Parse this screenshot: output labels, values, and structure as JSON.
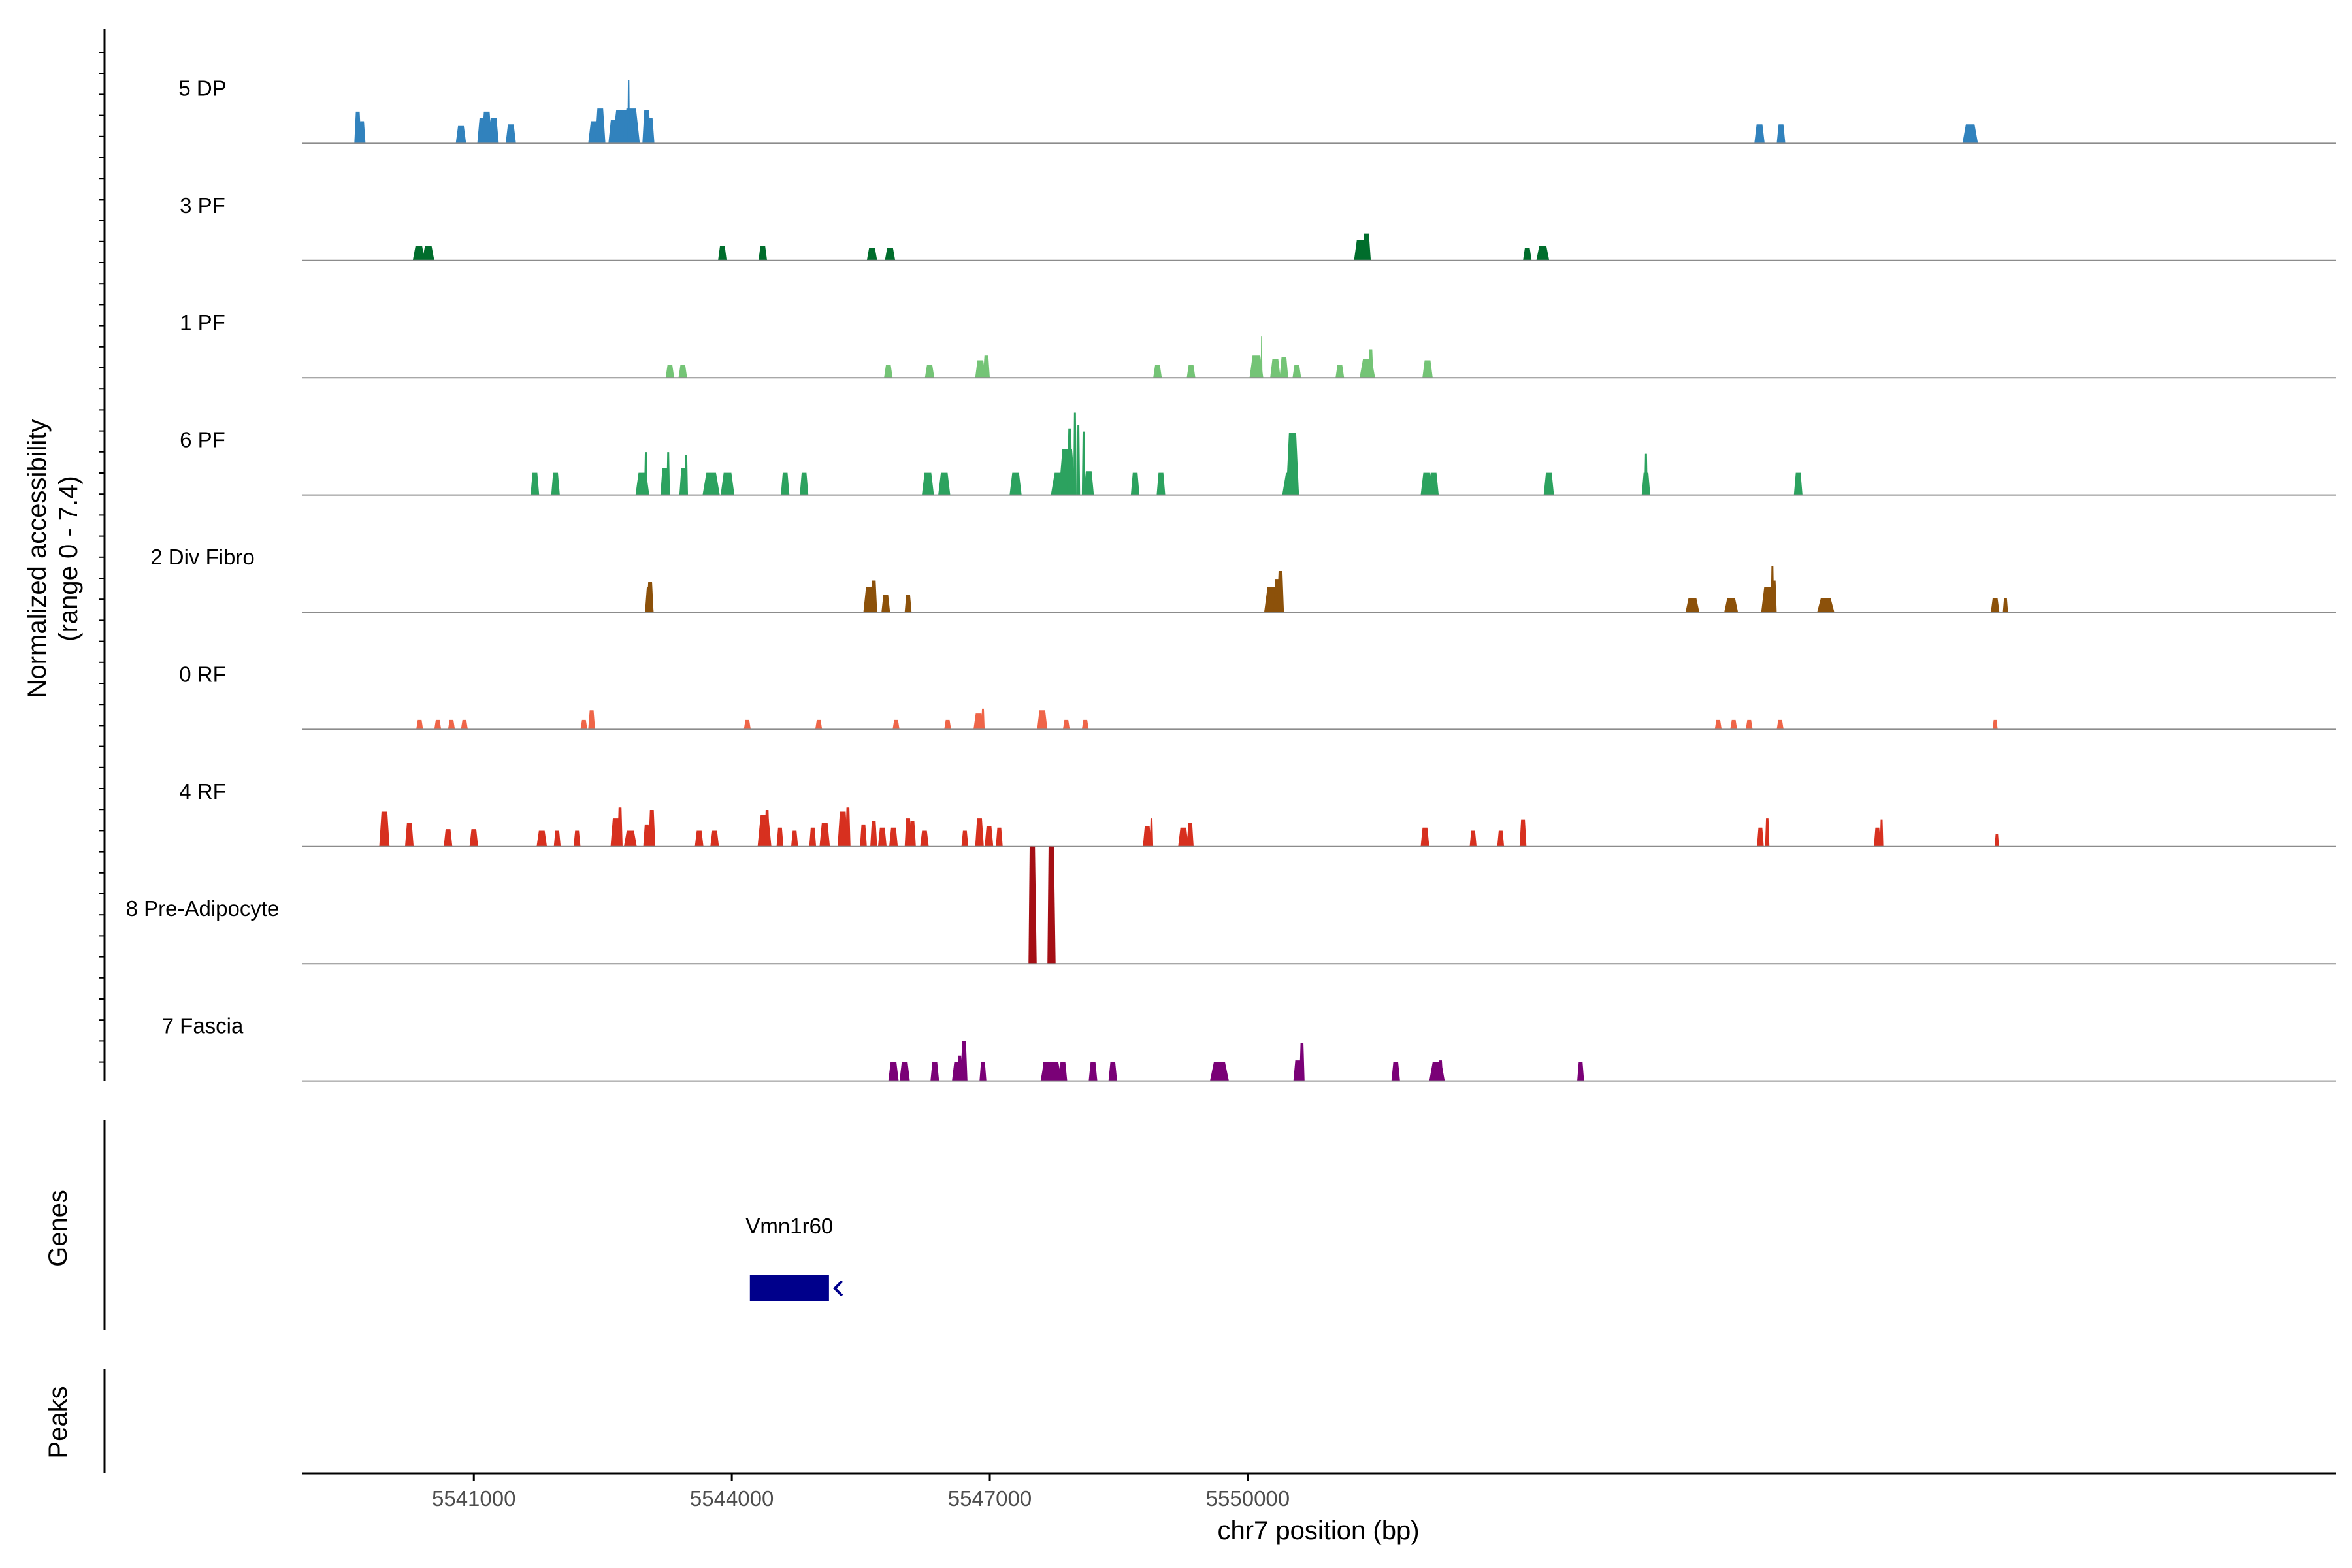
{
  "chart_data": {
    "type": "area",
    "title": "",
    "chromosome": "chr7",
    "xlabel": "chr7 position (bp)",
    "ylabel_line1": "Normalized accessibility",
    "ylabel_line2": "(range 0 - 7.4)",
    "xlim": [
      5539000,
      5562650
    ],
    "ylim": [
      0,
      7.4
    ],
    "xticks": [
      {
        "value": 5541000,
        "label": "5541000"
      },
      {
        "value": 5544000,
        "label": "5544000"
      },
      {
        "value": 5547000,
        "label": "5547000"
      },
      {
        "value": 5550000,
        "label": "5550000"
      }
    ],
    "tracks": [
      {
        "name": "5 DP",
        "color": "#3182bd",
        "peaks": [
          [
            5539650,
            80,
            2.0
          ],
          [
            5539700,
            80,
            1.4
          ],
          [
            5540850,
            120,
            1.1
          ],
          [
            5541100,
            120,
            1.6
          ],
          [
            5541150,
            120,
            2.0
          ],
          [
            5541230,
            120,
            1.6
          ],
          [
            5541430,
            120,
            1.2
          ],
          [
            5542400,
            140,
            1.4
          ],
          [
            5542470,
            120,
            2.2
          ],
          [
            5542630,
            130,
            1.5
          ],
          [
            5542720,
            220,
            2.1
          ],
          [
            5542830,
            200,
            2.2
          ],
          [
            5542800,
            30,
            4.0
          ],
          [
            5543010,
            100,
            2.1
          ],
          [
            5543050,
            100,
            1.6
          ],
          [
            5555950,
            120,
            1.2
          ],
          [
            5556200,
            100,
            1.2
          ],
          [
            5558400,
            180,
            1.2
          ]
        ]
      },
      {
        "name": "3 PF",
        "color": "#006d2c",
        "peaks": [
          [
            5540360,
            140,
            0.9
          ],
          [
            5540470,
            140,
            0.9
          ],
          [
            5543890,
            100,
            0.9
          ],
          [
            5544360,
            100,
            0.9
          ],
          [
            5545630,
            120,
            0.8
          ],
          [
            5545840,
            120,
            0.8
          ],
          [
            5551310,
            150,
            1.3
          ],
          [
            5551380,
            100,
            1.7
          ],
          [
            5553250,
            100,
            0.8
          ],
          [
            5553430,
            150,
            0.9
          ]
        ]
      },
      {
        "name": "1 PF",
        "color": "#74c476",
        "peaks": [
          [
            5543280,
            100,
            0.8
          ],
          [
            5543430,
            100,
            0.8
          ],
          [
            5545820,
            100,
            0.8
          ],
          [
            5546300,
            110,
            0.8
          ],
          [
            5546890,
            120,
            1.1
          ],
          [
            5546960,
            80,
            1.4
          ],
          [
            5548950,
            100,
            0.8
          ],
          [
            5549340,
            100,
            0.8
          ],
          [
            5550100,
            160,
            1.4
          ],
          [
            5550160,
            20,
            2.6
          ],
          [
            5550320,
            120,
            1.2
          ],
          [
            5550420,
            100,
            1.3
          ],
          [
            5550570,
            100,
            0.8
          ],
          [
            5551070,
            100,
            0.8
          ],
          [
            5551390,
            180,
            1.2
          ],
          [
            5551430,
            60,
            1.8
          ],
          [
            5552090,
            120,
            1.1
          ]
        ]
      },
      {
        "name": "6 PF",
        "color": "#2ca25f",
        "peaks": [
          [
            5541710,
            100,
            1.4
          ],
          [
            5541950,
            100,
            1.4
          ],
          [
            5542960,
            160,
            1.4
          ],
          [
            5543000,
            40,
            2.7
          ],
          [
            5543220,
            100,
            1.7
          ],
          [
            5543260,
            40,
            2.7
          ],
          [
            5543440,
            100,
            1.7
          ],
          [
            5543470,
            40,
            2.5
          ],
          [
            5543760,
            200,
            1.4
          ],
          [
            5543950,
            160,
            1.4
          ],
          [
            5544620,
            100,
            1.4
          ],
          [
            5544840,
            100,
            1.4
          ],
          [
            5546280,
            140,
            1.4
          ],
          [
            5546470,
            140,
            1.4
          ],
          [
            5547300,
            140,
            1.4
          ],
          [
            5547810,
            200,
            1.4
          ],
          [
            5547900,
            200,
            2.9
          ],
          [
            5547930,
            60,
            4.2
          ],
          [
            5547990,
            40,
            5.2
          ],
          [
            5548030,
            40,
            4.4
          ],
          [
            5548090,
            40,
            4.0
          ],
          [
            5548150,
            120,
            1.5
          ],
          [
            5548690,
            100,
            1.4
          ],
          [
            5548990,
            100,
            1.4
          ],
          [
            5550500,
            200,
            1.4
          ],
          [
            5550520,
            150,
            3.9
          ],
          [
            5552080,
            140,
            1.4
          ],
          [
            5552160,
            120,
            1.4
          ],
          [
            5553500,
            120,
            1.4
          ],
          [
            5554630,
            100,
            1.4
          ],
          [
            5554630,
            40,
            2.6
          ],
          [
            5556400,
            100,
            1.4
          ]
        ]
      },
      {
        "name": "2 Div Fibro",
        "color": "#8c510a",
        "peaks": [
          [
            5543040,
            100,
            1.6
          ],
          [
            5543050,
            80,
            1.9
          ],
          [
            5545600,
            140,
            1.6
          ],
          [
            5545650,
            80,
            2.0
          ],
          [
            5545790,
            100,
            1.1
          ],
          [
            5546050,
            80,
            1.1
          ],
          [
            5550280,
            180,
            1.6
          ],
          [
            5550340,
            80,
            2.1
          ],
          [
            5550380,
            80,
            2.6
          ],
          [
            5555170,
            160,
            0.9
          ],
          [
            5555620,
            160,
            0.9
          ],
          [
            5556050,
            160,
            1.6
          ],
          [
            5556100,
            40,
            2.9
          ],
          [
            5556120,
            60,
            2.0
          ],
          [
            5556720,
            200,
            0.9
          ],
          [
            5558690,
            100,
            0.9
          ],
          [
            5558810,
            60,
            0.9
          ]
        ]
      },
      {
        "name": "0 RF",
        "color": "#ef6548",
        "peaks": [
          [
            5540370,
            80,
            0.6
          ],
          [
            5540580,
            80,
            0.6
          ],
          [
            5540740,
            80,
            0.6
          ],
          [
            5540890,
            80,
            0.6
          ],
          [
            5542280,
            80,
            0.6
          ],
          [
            5542370,
            80,
            1.2
          ],
          [
            5544180,
            80,
            0.6
          ],
          [
            5545010,
            80,
            0.6
          ],
          [
            5545910,
            80,
            0.6
          ],
          [
            5546510,
            80,
            0.6
          ],
          [
            5546870,
            120,
            1.0
          ],
          [
            5546920,
            40,
            1.3
          ],
          [
            5547610,
            120,
            1.2
          ],
          [
            5547890,
            80,
            0.6
          ],
          [
            5548110,
            80,
            0.6
          ],
          [
            5555470,
            80,
            0.6
          ],
          [
            5555650,
            80,
            0.6
          ],
          [
            5555830,
            80,
            0.6
          ],
          [
            5556190,
            80,
            0.6
          ],
          [
            5558690,
            60,
            0.6
          ]
        ]
      },
      {
        "name": "4 RF",
        "color": "#d7301f",
        "peaks": [
          [
            5539960,
            120,
            2.2
          ],
          [
            5540250,
            100,
            1.5
          ],
          [
            5540700,
            100,
            1.1
          ],
          [
            5541000,
            100,
            1.1
          ],
          [
            5541790,
            120,
            1.0
          ],
          [
            5541970,
            80,
            1.0
          ],
          [
            5542200,
            80,
            1.0
          ],
          [
            5542650,
            120,
            1.8
          ],
          [
            5542700,
            60,
            2.5
          ],
          [
            5542820,
            150,
            1.0
          ],
          [
            5543010,
            80,
            1.4
          ],
          [
            5543070,
            80,
            2.3
          ],
          [
            5543620,
            100,
            1.0
          ],
          [
            5543800,
            100,
            1.0
          ],
          [
            5544380,
            160,
            2.0
          ],
          [
            5544410,
            60,
            2.3
          ],
          [
            5544560,
            80,
            1.2
          ],
          [
            5544730,
            80,
            1.0
          ],
          [
            5544940,
            80,
            1.2
          ],
          [
            5545080,
            120,
            1.5
          ],
          [
            5545290,
            120,
            2.2
          ],
          [
            5545350,
            60,
            2.5
          ],
          [
            5545530,
            80,
            1.4
          ],
          [
            5545650,
            80,
            1.6
          ],
          [
            5545750,
            100,
            1.2
          ],
          [
            5545880,
            100,
            1.2
          ],
          [
            5546050,
            80,
            1.8
          ],
          [
            5546100,
            80,
            1.6
          ],
          [
            5546240,
            100,
            1.0
          ],
          [
            5546710,
            80,
            1.0
          ],
          [
            5546880,
            100,
            1.8
          ],
          [
            5546990,
            100,
            1.3
          ],
          [
            5547110,
            80,
            1.2
          ],
          [
            5548830,
            100,
            1.3
          ],
          [
            5548880,
            40,
            1.8
          ],
          [
            5549250,
            120,
            1.2
          ],
          [
            5549330,
            80,
            1.5
          ],
          [
            5552060,
            100,
            1.2
          ],
          [
            5552620,
            80,
            1.0
          ],
          [
            5552940,
            80,
            1.0
          ],
          [
            5553200,
            80,
            1.7
          ],
          [
            5555960,
            80,
            1.2
          ],
          [
            5556040,
            50,
            1.8
          ],
          [
            5557320,
            80,
            1.2
          ],
          [
            5557370,
            40,
            1.7
          ],
          [
            5558710,
            50,
            0.8
          ]
        ]
      },
      {
        "name": "8 Pre-Adipocyte",
        "color": "#a50f15",
        "peaks": [
          [
            5547480,
            60,
            7.4
          ],
          [
            5547500,
            90,
            7.4
          ],
          [
            5547700,
            60,
            7.4
          ],
          [
            5547720,
            90,
            7.4
          ]
        ]
      },
      {
        "name": "7 Fascia",
        "color": "#7a0177",
        "peaks": [
          [
            5545880,
            120,
            1.2
          ],
          [
            5546010,
            120,
            1.2
          ],
          [
            5546360,
            100,
            1.2
          ],
          [
            5546620,
            120,
            1.2
          ],
          [
            5546650,
            60,
            1.6
          ],
          [
            5546700,
            80,
            2.5
          ],
          [
            5546920,
            80,
            1.2
          ],
          [
            5547650,
            100,
            1.2
          ],
          [
            5547850,
            100,
            1.2
          ],
          [
            5547680,
            180,
            1.2
          ],
          [
            5547740,
            200,
            1.2
          ],
          [
            5548200,
            100,
            1.2
          ],
          [
            5548430,
            100,
            1.2
          ],
          [
            5549670,
            220,
            1.2
          ],
          [
            5550580,
            100,
            1.3
          ],
          [
            5550630,
            60,
            2.4
          ],
          [
            5551720,
            100,
            1.2
          ],
          [
            5552200,
            180,
            1.2
          ],
          [
            5552240,
            60,
            1.3
          ],
          [
            5553870,
            80,
            1.2
          ]
        ]
      }
    ],
    "genes": [
      {
        "name": "Vmn1r60",
        "start": 5544210,
        "end": 5545130,
        "strand": "-"
      }
    ],
    "panel_labels": {
      "genes": "Genes",
      "peaks": "Peaks"
    }
  }
}
